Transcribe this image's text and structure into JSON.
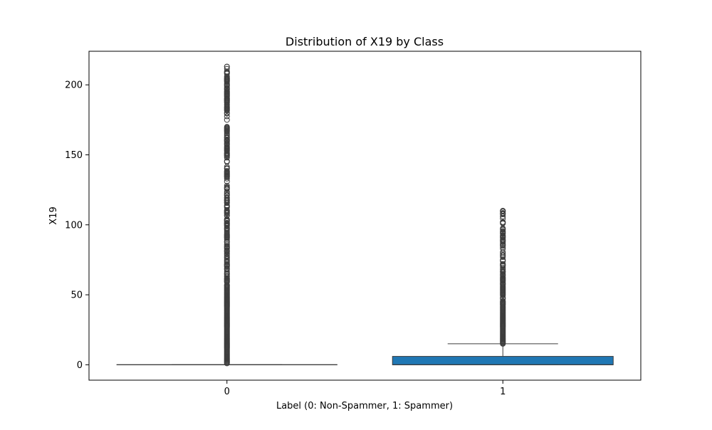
{
  "chart_data": {
    "type": "boxplot",
    "title": "Distribution of X19 by Class",
    "xlabel": "Label (0: Non-Spammer, 1: Spammer)",
    "ylabel": "X19",
    "categories": [
      "0",
      "1"
    ],
    "ylim": [
      -11,
      224
    ],
    "yticks": [
      0,
      50,
      100,
      150,
      200
    ],
    "grid": false,
    "legend": "none",
    "colors": {
      "box": "#1f77b4",
      "line": "#3d3d3d",
      "axis": "#000000"
    },
    "boxes": [
      {
        "category": "0",
        "q1": 0,
        "median": 0,
        "q3": 0,
        "whisker_low": 0,
        "whisker_high": 0,
        "outlier_min": 1,
        "outlier_max": 213
      },
      {
        "category": "1",
        "q1": 0,
        "median": 0,
        "q3": 6,
        "whisker_low": 0,
        "whisker_high": 15,
        "outlier_min": 15,
        "outlier_max": 110
      }
    ]
  }
}
